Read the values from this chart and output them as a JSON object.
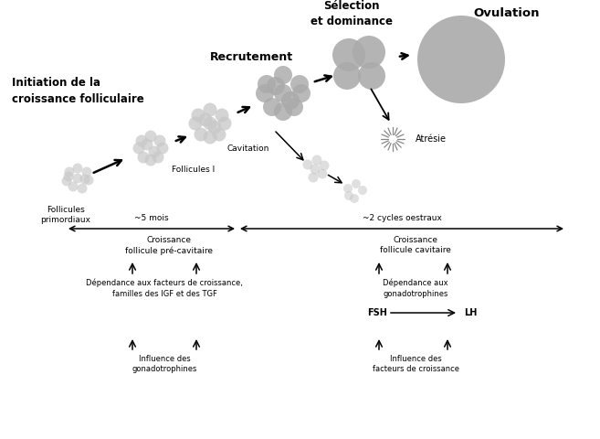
{
  "bg_color": "#ffffff",
  "follicle_color": "#aaaaaa",
  "follicle_color_light": "#c8c8c8",
  "follicle_color_dark": "#888888",
  "text_color": "#000000",
  "title_labels": {
    "initiation": "Initiation de la\ncroissance folliculaire",
    "recrutement": "Recrutement",
    "selection": "Sélection\net dominance",
    "ovulation": "Ovulation"
  },
  "follicle_labels": {
    "primordiaux": "Follicules\nprimordiaux",
    "follicules1": "Follicules I",
    "cavitation": "Cavitation",
    "atresie": "Atrésie"
  },
  "bottom_labels": {
    "5mois": "~5 mois",
    "2cycles": "~2 cycles oestraux",
    "croissance_pre": "Croissance\nfollicule pré-cavitaire",
    "croissance_cav": "Croissance\nfollicule cavitaire",
    "dependance_igf": "Dépendance aux facteurs de croissance,\nfamilles des IGF et des TGF",
    "dependance_gona": "Dépendance aux\ngonadotrophines",
    "influence_gona": "Influence des\ngonadotrophines",
    "influence_facteurs": "Influence des\nfacteurs de croissance",
    "fsh": "FSH",
    "lh": "LH"
  }
}
